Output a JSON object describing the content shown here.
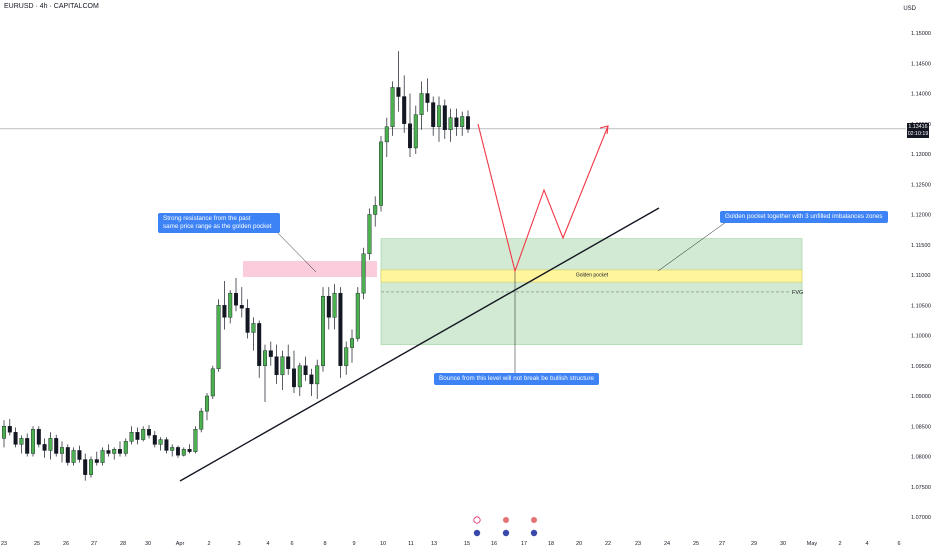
{
  "header": {
    "symbol": "EURUSD · 4h · CAPITALCOM"
  },
  "axis": {
    "currency": "USD"
  },
  "current_price": {
    "price": "1.13416",
    "countdown": "02:10:19"
  },
  "annotations": {
    "resistance": {
      "line1": "Strong resistance from the past",
      "line2": "same price range as the golden pocket"
    },
    "golden_zone": "Golden pocket together with 3 unfilled imbalances zones",
    "bounce": "Bounce from this level will not break be bullish structure",
    "golden_pocket_label": "Golden pocket",
    "fvg_label": "FVG"
  },
  "colors": {
    "up": "#4caf50",
    "down": "#131722",
    "projection": "#f23645",
    "resistance_box": "#f8bbd0",
    "zone_box": "#c8e6c9",
    "golden_pocket": "#fff59d",
    "callout": "#3d83f5"
  },
  "chart_data": {
    "type": "candlestick",
    "instrument": "EURUSD",
    "timeframe": "4h",
    "ylim": [
      1.0685,
      1.153
    ],
    "y_ticks": [
      "1.15000",
      "1.14500",
      "1.14000",
      "1.13500",
      "1.13000",
      "1.12500",
      "1.12000",
      "1.11500",
      "1.11000",
      "1.10500",
      "1.10000",
      "1.09500",
      "1.09000",
      "1.08500",
      "1.08000",
      "1.07500",
      "1.07000"
    ],
    "x_ticks": [
      "23",
      "25",
      "26",
      "27",
      "28",
      "30",
      "Apr",
      "2",
      "3",
      "4",
      "6",
      "8",
      "9",
      "10",
      "11",
      "13",
      "15",
      "16",
      "17",
      "18",
      "20",
      "22",
      "23",
      "24",
      "25",
      "27",
      "29",
      "30",
      "May",
      "2",
      "4",
      "6"
    ],
    "levels": {
      "current": 1.13416,
      "resistance_zone": [
        1.1075,
        1.11
      ],
      "demand_zone": [
        1.0985,
        1.116
      ],
      "golden_pocket": [
        1.109,
        1.111
      ],
      "fvg": 1.1072
    },
    "projection_path": [
      {
        "date": "Apr 15",
        "price": 1.1335
      },
      {
        "date": "Apr 17",
        "price": 1.11
      },
      {
        "date": "Apr 18",
        "price": 1.124
      },
      {
        "date": "Apr 19",
        "price": 1.116
      },
      {
        "date": "Apr 22",
        "price": 1.1345
      }
    ],
    "trendline": [
      {
        "date": "Apr 1",
        "price": 1.079
      },
      {
        "date": "Apr 24",
        "price": 1.121
      }
    ],
    "candles": [
      {
        "o": 1.083,
        "h": 1.086,
        "l": 1.0815,
        "c": 1.085
      },
      {
        "o": 1.085,
        "h": 1.0862,
        "l": 1.0835,
        "c": 1.084
      },
      {
        "o": 1.084,
        "h": 1.0848,
        "l": 1.0815,
        "c": 1.082
      },
      {
        "o": 1.082,
        "h": 1.0835,
        "l": 1.0805,
        "c": 1.083
      },
      {
        "o": 1.083,
        "h": 1.0838,
        "l": 1.08,
        "c": 1.0805
      },
      {
        "o": 1.0805,
        "h": 1.085,
        "l": 1.08,
        "c": 1.0845
      },
      {
        "o": 1.0845,
        "h": 1.085,
        "l": 1.0815,
        "c": 1.082
      },
      {
        "o": 1.082,
        "h": 1.083,
        "l": 1.0798,
        "c": 1.081
      },
      {
        "o": 1.081,
        "h": 1.084,
        "l": 1.0795,
        "c": 1.083
      },
      {
        "o": 1.083,
        "h": 1.0836,
        "l": 1.08,
        "c": 1.0805
      },
      {
        "o": 1.0805,
        "h": 1.0825,
        "l": 1.079,
        "c": 1.0815
      },
      {
        "o": 1.0815,
        "h": 1.082,
        "l": 1.0785,
        "c": 1.079
      },
      {
        "o": 1.079,
        "h": 1.0815,
        "l": 1.0785,
        "c": 1.081
      },
      {
        "o": 1.081,
        "h": 1.0818,
        "l": 1.079,
        "c": 1.0795
      },
      {
        "o": 1.0795,
        "h": 1.0805,
        "l": 1.076,
        "c": 1.077
      },
      {
        "o": 1.077,
        "h": 1.08,
        "l": 1.0765,
        "c": 1.0795
      },
      {
        "o": 1.0795,
        "h": 1.0808,
        "l": 1.0785,
        "c": 1.079
      },
      {
        "o": 1.079,
        "h": 1.0815,
        "l": 1.0785,
        "c": 1.081
      },
      {
        "o": 1.081,
        "h": 1.082,
        "l": 1.08,
        "c": 1.0805
      },
      {
        "o": 1.0805,
        "h": 1.0815,
        "l": 1.0795,
        "c": 1.0812
      },
      {
        "o": 1.0812,
        "h": 1.0825,
        "l": 1.08,
        "c": 1.0805
      },
      {
        "o": 1.0805,
        "h": 1.083,
        "l": 1.08,
        "c": 1.0825
      },
      {
        "o": 1.0825,
        "h": 1.085,
        "l": 1.082,
        "c": 1.084
      },
      {
        "o": 1.084,
        "h": 1.0848,
        "l": 1.082,
        "c": 1.0828
      },
      {
        "o": 1.0828,
        "h": 1.085,
        "l": 1.0825,
        "c": 1.0845
      },
      {
        "o": 1.0845,
        "h": 1.0852,
        "l": 1.083,
        "c": 1.0835
      },
      {
        "o": 1.0835,
        "h": 1.0842,
        "l": 1.0815,
        "c": 1.082
      },
      {
        "o": 1.082,
        "h": 1.0832,
        "l": 1.081,
        "c": 1.0828
      },
      {
        "o": 1.0828,
        "h": 1.0832,
        "l": 1.0805,
        "c": 1.081
      },
      {
        "o": 1.081,
        "h": 1.082,
        "l": 1.08,
        "c": 1.0815
      },
      {
        "o": 1.0815,
        "h": 1.0818,
        "l": 1.0798,
        "c": 1.0802
      },
      {
        "o": 1.0802,
        "h": 1.0815,
        "l": 1.08,
        "c": 1.0812
      },
      {
        "o": 1.0812,
        "h": 1.082,
        "l": 1.0805,
        "c": 1.0808
      },
      {
        "o": 1.0808,
        "h": 1.085,
        "l": 1.0805,
        "c": 1.0845
      },
      {
        "o": 1.0845,
        "h": 1.088,
        "l": 1.084,
        "c": 1.0875
      },
      {
        "o": 1.0875,
        "h": 1.0905,
        "l": 1.086,
        "c": 1.09
      },
      {
        "o": 1.09,
        "h": 1.095,
        "l": 1.0895,
        "c": 1.0945
      },
      {
        "o": 1.0945,
        "h": 1.106,
        "l": 1.094,
        "c": 1.105
      },
      {
        "o": 1.105,
        "h": 1.109,
        "l": 1.101,
        "c": 1.103
      },
      {
        "o": 1.103,
        "h": 1.1075,
        "l": 1.102,
        "c": 1.107
      },
      {
        "o": 1.107,
        "h": 1.1095,
        "l": 1.104,
        "c": 1.105
      },
      {
        "o": 1.105,
        "h": 1.108,
        "l": 1.103,
        "c": 1.1045
      },
      {
        "o": 1.1045,
        "h": 1.106,
        "l": 1.0995,
        "c": 1.1005
      },
      {
        "o": 1.1005,
        "h": 1.103,
        "l": 1.0975,
        "c": 1.102
      },
      {
        "o": 1.102,
        "h": 1.1025,
        "l": 1.093,
        "c": 1.095
      },
      {
        "o": 1.095,
        "h": 1.0985,
        "l": 1.089,
        "c": 1.0975
      },
      {
        "o": 1.0975,
        "h": 1.099,
        "l": 1.095,
        "c": 1.0965
      },
      {
        "o": 1.0965,
        "h": 1.0985,
        "l": 1.092,
        "c": 1.0935
      },
      {
        "o": 1.0935,
        "h": 1.0975,
        "l": 1.091,
        "c": 1.0965
      },
      {
        "o": 1.0965,
        "h": 1.0985,
        "l": 1.0935,
        "c": 1.0945
      },
      {
        "o": 1.0945,
        "h": 1.0975,
        "l": 1.0905,
        "c": 1.0915
      },
      {
        "o": 1.0915,
        "h": 1.0955,
        "l": 1.09,
        "c": 1.095
      },
      {
        "o": 1.095,
        "h": 1.0965,
        "l": 1.0925,
        "c": 1.0935
      },
      {
        "o": 1.0935,
        "h": 1.0945,
        "l": 1.09,
        "c": 1.092
      },
      {
        "o": 1.092,
        "h": 1.096,
        "l": 1.0895,
        "c": 1.095
      },
      {
        "o": 1.095,
        "h": 1.108,
        "l": 1.094,
        "c": 1.1065
      },
      {
        "o": 1.1065,
        "h": 1.108,
        "l": 1.101,
        "c": 1.103
      },
      {
        "o": 1.103,
        "h": 1.1085,
        "l": 1.101,
        "c": 1.107
      },
      {
        "o": 1.107,
        "h": 1.108,
        "l": 1.093,
        "c": 1.095
      },
      {
        "o": 1.095,
        "h": 1.099,
        "l": 1.0935,
        "c": 1.098
      },
      {
        "o": 1.098,
        "h": 1.101,
        "l": 1.0955,
        "c": 1.0995
      },
      {
        "o": 1.0995,
        "h": 1.108,
        "l": 1.099,
        "c": 1.107
      },
      {
        "o": 1.107,
        "h": 1.1145,
        "l": 1.106,
        "c": 1.1135
      },
      {
        "o": 1.1135,
        "h": 1.121,
        "l": 1.1125,
        "c": 1.12
      },
      {
        "o": 1.12,
        "h": 1.123,
        "l": 1.118,
        "c": 1.1215
      },
      {
        "o": 1.1215,
        "h": 1.133,
        "l": 1.1205,
        "c": 1.132
      },
      {
        "o": 1.132,
        "h": 1.136,
        "l": 1.1295,
        "c": 1.1345
      },
      {
        "o": 1.1345,
        "h": 1.142,
        "l": 1.133,
        "c": 1.141
      },
      {
        "o": 1.141,
        "h": 1.147,
        "l": 1.137,
        "c": 1.1395
      },
      {
        "o": 1.1395,
        "h": 1.143,
        "l": 1.1335,
        "c": 1.135
      },
      {
        "o": 1.135,
        "h": 1.14,
        "l": 1.1295,
        "c": 1.131
      },
      {
        "o": 1.131,
        "h": 1.138,
        "l": 1.13,
        "c": 1.1365
      },
      {
        "o": 1.1365,
        "h": 1.142,
        "l": 1.134,
        "c": 1.14
      },
      {
        "o": 1.14,
        "h": 1.1425,
        "l": 1.137,
        "c": 1.1385
      },
      {
        "o": 1.1385,
        "h": 1.1395,
        "l": 1.133,
        "c": 1.1345
      },
      {
        "o": 1.1345,
        "h": 1.1395,
        "l": 1.132,
        "c": 1.138
      },
      {
        "o": 1.138,
        "h": 1.139,
        "l": 1.1325,
        "c": 1.134
      },
      {
        "o": 1.134,
        "h": 1.1375,
        "l": 1.132,
        "c": 1.136
      },
      {
        "o": 1.136,
        "h": 1.1375,
        "l": 1.133,
        "c": 1.1345
      },
      {
        "o": 1.1345,
        "h": 1.137,
        "l": 1.133,
        "c": 1.1362
      },
      {
        "o": 1.1362,
        "h": 1.1372,
        "l": 1.1335,
        "c": 1.1341
      }
    ]
  }
}
